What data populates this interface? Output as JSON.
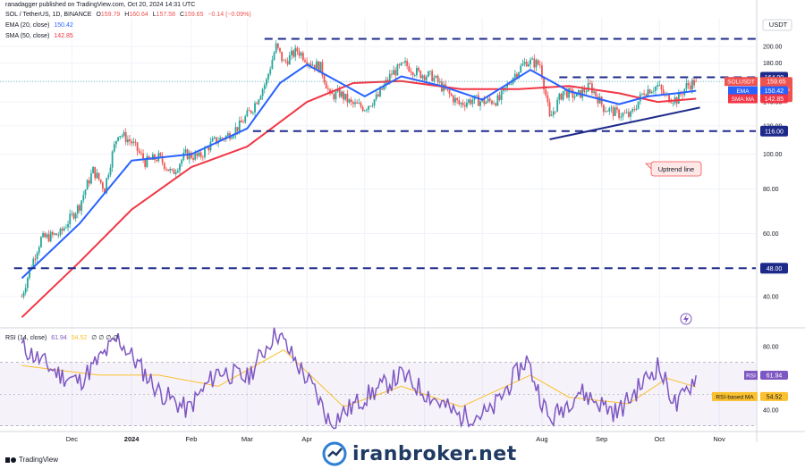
{
  "header": {
    "published": "ranadagger published on TradingView.com, Oct 20, 2024 14:31 UTC",
    "symbol": "SOL / TetherUS, 1D, BINANCE",
    "o_label": "O",
    "o_value": "159.79",
    "h_label": "H",
    "h_value": "160.64",
    "l_label": "L",
    "l_value": "157.58",
    "c_label": "C",
    "c_value": "159.65",
    "change": "−0.14 (−0.09%)",
    "ema_legend": "EMA (20, close)",
    "ema_value": "150.42",
    "sma_legend": "SMA (50, close)",
    "sma_value": "142.85",
    "rsi_legend": "RSI (14, close)",
    "rsi_value": "61.94",
    "rsi_value2": "54.52",
    "rsi_tail": "∅ ∅ ∅ ∅"
  },
  "footer": {
    "logo_text": "TradingView",
    "watermark": "iranbroker.net"
  },
  "colors": {
    "up": "#26a69a",
    "down": "#ef5350",
    "ema": "#2962ff",
    "sma": "#f23645",
    "rsi": "#7e57c2",
    "rsi_ma": "#fbc02d",
    "level": "#1e2a8a",
    "trend": "#1e2a8a"
  },
  "chart_data": {
    "type": "candlestick",
    "currency_unit": "USDT",
    "price_axis_ticks": [
      "200.00",
      "180.00",
      "164.00",
      "140.00",
      "120.00",
      "116.00",
      "100.00",
      "80.00",
      "60.00",
      "48.00",
      "40.00"
    ],
    "x_axis_ticks": [
      "Dec",
      "2024",
      "Feb",
      "Mar",
      "Apr",
      "Aug",
      "Sep",
      "Oct",
      "Nov"
    ],
    "horizontal_levels": [
      {
        "label": "",
        "value": 210
      },
      {
        "label": "164.00",
        "value": 164
      },
      {
        "label": "116.00",
        "value": 116
      },
      {
        "label": "48.00",
        "value": 48
      }
    ],
    "trendline": {
      "label": "Uptrend line",
      "from": {
        "date": "2024-08-05",
        "value": 110
      },
      "to": {
        "date": "2024-10-22",
        "value": 135
      }
    },
    "price_tags": {
      "sol": {
        "label": "SOLUSDT",
        "value": "159.65",
        "change": "+183.27%",
        "timer": "09:28:47"
      },
      "ema": {
        "label": "EMA",
        "value": "150.42"
      },
      "sma": {
        "label": "SMA:MA",
        "value": "142.85"
      }
    },
    "rsi": {
      "ticks": [
        "80.00",
        "40.00"
      ],
      "band": [
        30,
        70
      ],
      "tag_label": "RSI",
      "tag_value": "61.94",
      "ma_label": "RSI-based MA",
      "ma_value": "54.52"
    },
    "price_path": [
      [
        "2023-11-05",
        40
      ],
      [
        "2023-11-15",
        58
      ],
      [
        "2023-11-25",
        60
      ],
      [
        "2023-12-05",
        72
      ],
      [
        "2023-12-12",
        90
      ],
      [
        "2023-12-18",
        80
      ],
      [
        "2023-12-25",
        115
      ],
      [
        "2024-01-01",
        108
      ],
      [
        "2024-01-08",
        95
      ],
      [
        "2024-01-15",
        98
      ],
      [
        "2024-01-22",
        88
      ],
      [
        "2024-01-29",
        100
      ],
      [
        "2024-02-05",
        98
      ],
      [
        "2024-02-12",
        108
      ],
      [
        "2024-02-19",
        112
      ],
      [
        "2024-02-26",
        120
      ],
      [
        "2024-03-04",
        135
      ],
      [
        "2024-03-11",
        160
      ],
      [
        "2024-03-16",
        200
      ],
      [
        "2024-03-20",
        180
      ],
      [
        "2024-03-27",
        195
      ],
      [
        "2024-04-03",
        180
      ],
      [
        "2024-04-08",
        175
      ],
      [
        "2024-04-13",
        145
      ],
      [
        "2024-04-18",
        148
      ],
      [
        "2024-04-24",
        138
      ],
      [
        "2024-05-01",
        135
      ],
      [
        "2024-05-08",
        145
      ],
      [
        "2024-05-15",
        168
      ],
      [
        "2024-05-22",
        178
      ],
      [
        "2024-05-29",
        168
      ],
      [
        "2024-06-05",
        165
      ],
      [
        "2024-06-12",
        150
      ],
      [
        "2024-06-19",
        138
      ],
      [
        "2024-06-26",
        142
      ],
      [
        "2024-07-03",
        140
      ],
      [
        "2024-07-10",
        142
      ],
      [
        "2024-07-17",
        165
      ],
      [
        "2024-07-24",
        182
      ],
      [
        "2024-07-31",
        178
      ],
      [
        "2024-08-05",
        125
      ],
      [
        "2024-08-12",
        150
      ],
      [
        "2024-08-19",
        145
      ],
      [
        "2024-08-26",
        155
      ],
      [
        "2024-09-02",
        135
      ],
      [
        "2024-09-09",
        130
      ],
      [
        "2024-09-16",
        128
      ],
      [
        "2024-09-23",
        150
      ],
      [
        "2024-09-30",
        155
      ],
      [
        "2024-10-04",
        145
      ],
      [
        "2024-10-10",
        142
      ],
      [
        "2024-10-15",
        155
      ],
      [
        "2024-10-20",
        159.65
      ]
    ],
    "ema_path": [
      [
        "2023-11-05",
        45
      ],
      [
        "2023-12-05",
        64
      ],
      [
        "2024-01-01",
        96
      ],
      [
        "2024-02-01",
        100
      ],
      [
        "2024-03-01",
        118
      ],
      [
        "2024-03-18",
        158
      ],
      [
        "2024-04-01",
        178
      ],
      [
        "2024-04-15",
        162
      ],
      [
        "2024-05-01",
        145
      ],
      [
        "2024-05-20",
        165
      ],
      [
        "2024-06-10",
        155
      ],
      [
        "2024-07-01",
        142
      ],
      [
        "2024-07-26",
        172
      ],
      [
        "2024-08-15",
        150
      ],
      [
        "2024-09-10",
        138
      ],
      [
        "2024-09-25",
        145
      ],
      [
        "2024-10-10",
        148
      ],
      [
        "2024-10-20",
        150.42
      ]
    ],
    "sma_path": [
      [
        "2023-11-05",
        35
      ],
      [
        "2023-12-05",
        50
      ],
      [
        "2024-01-01",
        70
      ],
      [
        "2024-02-01",
        92
      ],
      [
        "2024-03-01",
        105
      ],
      [
        "2024-04-01",
        140
      ],
      [
        "2024-04-25",
        158
      ],
      [
        "2024-05-20",
        160
      ],
      [
        "2024-06-20",
        152
      ],
      [
        "2024-07-20",
        152
      ],
      [
        "2024-08-15",
        155
      ],
      [
        "2024-09-10",
        148
      ],
      [
        "2024-09-30",
        140
      ],
      [
        "2024-10-20",
        142.85
      ]
    ],
    "rsi_path": [
      [
        "2023-11-05",
        80
      ],
      [
        "2023-11-25",
        62
      ],
      [
        "2023-12-05",
        58
      ],
      [
        "2023-12-25",
        85
      ],
      [
        "2024-01-15",
        52
      ],
      [
        "2024-01-30",
        40
      ],
      [
        "2024-02-15",
        65
      ],
      [
        "2024-03-01",
        60
      ],
      [
        "2024-03-16",
        90
      ],
      [
        "2024-04-05",
        52
      ],
      [
        "2024-04-13",
        32
      ],
      [
        "2024-05-01",
        48
      ],
      [
        "2024-05-20",
        62
      ],
      [
        "2024-06-19",
        36
      ],
      [
        "2024-07-05",
        38
      ],
      [
        "2024-07-24",
        72
      ],
      [
        "2024-08-05",
        33
      ],
      [
        "2024-08-20",
        52
      ],
      [
        "2024-09-09",
        38
      ],
      [
        "2024-09-30",
        68
      ],
      [
        "2024-10-10",
        42
      ],
      [
        "2024-10-20",
        61.94
      ]
    ],
    "rsi_ma_path": [
      [
        "2023-11-05",
        68
      ],
      [
        "2023-12-15",
        62
      ],
      [
        "2024-01-15",
        62
      ],
      [
        "2024-02-15",
        55
      ],
      [
        "2024-03-20",
        78
      ],
      [
        "2024-04-20",
        42
      ],
      [
        "2024-05-20",
        55
      ],
      [
        "2024-06-20",
        42
      ],
      [
        "2024-07-26",
        62
      ],
      [
        "2024-08-15",
        48
      ],
      [
        "2024-09-15",
        44
      ],
      [
        "2024-10-05",
        60
      ],
      [
        "2024-10-20",
        54.52
      ]
    ]
  }
}
